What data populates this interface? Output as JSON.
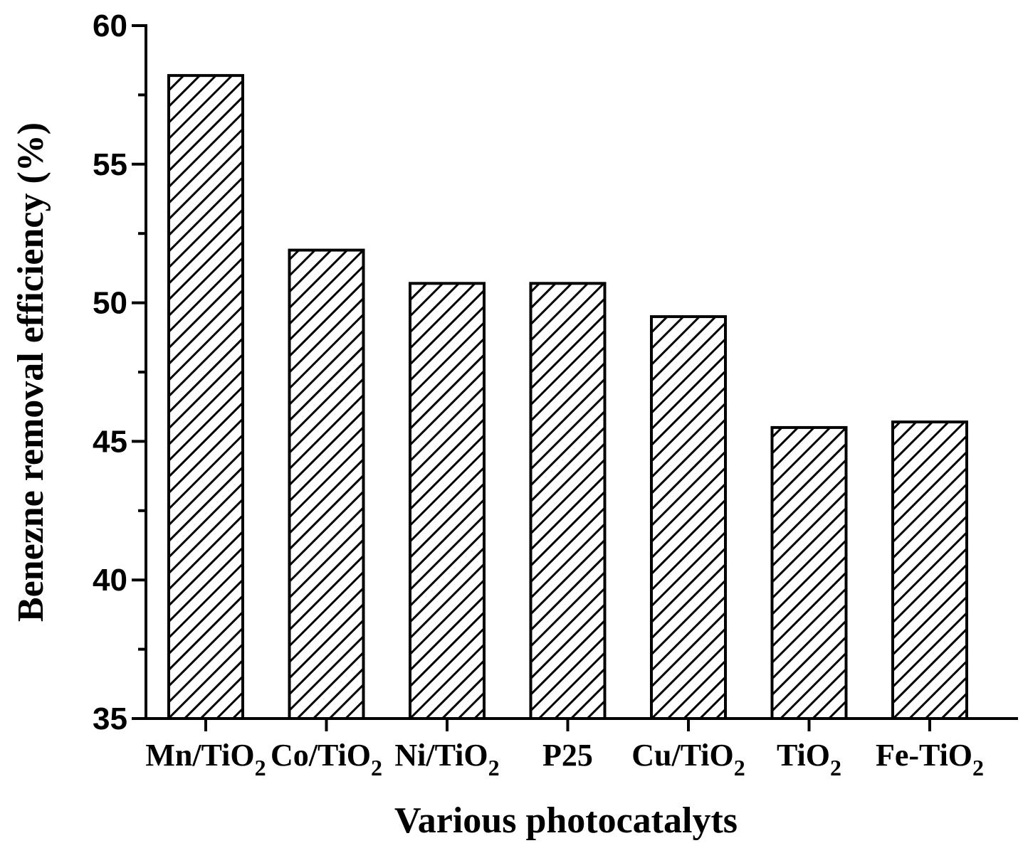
{
  "chart_data": {
    "type": "bar",
    "xlabel": "Various photocatalyts",
    "ylabel": "Benezne removal efficiency (%)",
    "ylim": [
      35,
      60
    ],
    "yticks": [
      35,
      40,
      45,
      50,
      55,
      60
    ],
    "grid": false,
    "legend": "none",
    "bar_fill": "diagonal hatch",
    "colors": {
      "bar_stroke": "#000000",
      "hatch": "#000000",
      "background": "#ffffff"
    },
    "categories": [
      "Mn/TiO2",
      "Co/TiO2",
      "Ni/TiO2",
      "P25",
      "Cu/TiO2",
      "TiO2",
      "Fe-TiO2"
    ],
    "category_labels": [
      {
        "main": "Mn/TiO",
        "sub": "2"
      },
      {
        "main": "Co/TiO",
        "sub": "2"
      },
      {
        "main": "Ni/TiO",
        "sub": "2"
      },
      {
        "main": "P25",
        "sub": ""
      },
      {
        "main": "Cu/TiO",
        "sub": "2"
      },
      {
        "main": "TiO",
        "sub": "2"
      },
      {
        "main": "Fe-TiO",
        "sub": "2"
      }
    ],
    "values": [
      58.2,
      51.9,
      50.7,
      50.7,
      49.5,
      45.5,
      45.7
    ]
  }
}
